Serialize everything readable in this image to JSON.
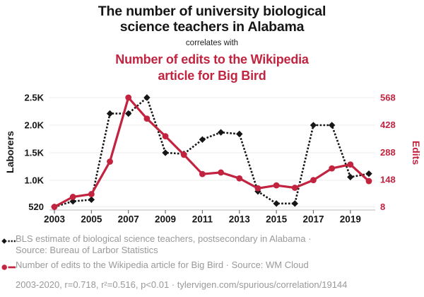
{
  "header": {
    "title_lines": [
      "The number of university biological",
      "science teachers in Alabama"
    ],
    "connector": "correlates with",
    "subtitle_lines": [
      "Number of edits to the Wikipedia",
      "article for Big Bird"
    ]
  },
  "colors": {
    "series_teachers": "#161616",
    "series_edits": "#c22440",
    "legend_text": "#999999",
    "grid": "#ececec",
    "axis_line": "#c6c6c6",
    "tick_mark": "#6e6e6e"
  },
  "chart_data": {
    "type": "line",
    "x": [
      2003,
      2004,
      2005,
      2006,
      2007,
      2008,
      2009,
      2010,
      2011,
      2012,
      2013,
      2014,
      2015,
      2016,
      2017,
      2018,
      2019,
      2020
    ],
    "series": [
      {
        "name": "BLS estimate of biological science teachers, postsecondary in Alabama",
        "axis": "left",
        "style": "dashed",
        "marker": "diamond",
        "color": "#161616",
        "values": [
          520,
          620,
          650,
          2210,
          2210,
          2500,
          1500,
          1480,
          1740,
          1870,
          1840,
          800,
          580,
          580,
          2000,
          2000,
          1060,
          1120
        ]
      },
      {
        "name": "Number of edits to the Wikipedia article for Big Bird",
        "axis": "right",
        "style": "solid",
        "marker": "circle",
        "color": "#c22440",
        "values": [
          8,
          59,
          73,
          240,
          568,
          460,
          370,
          275,
          176,
          184,
          154,
          103,
          118,
          106,
          145,
          205,
          225,
          140
        ]
      }
    ],
    "left_axis": {
      "label": "Laborers",
      "range": [
        520,
        2500
      ],
      "ticks": [
        520,
        1000,
        1500,
        2000,
        2500
      ],
      "tick_labels": [
        "520",
        "1.0K",
        "1.5K",
        "2.0K",
        "2.5K"
      ]
    },
    "right_axis": {
      "label": "Edits",
      "range": [
        8,
        568
      ],
      "ticks": [
        8,
        148,
        288,
        428,
        568
      ],
      "tick_labels": [
        "8",
        "148",
        "288",
        "428",
        "568"
      ]
    },
    "x_axis": {
      "ticks": [
        2003,
        2005,
        2007,
        2009,
        2011,
        2013,
        2015,
        2017,
        2019
      ],
      "tick_labels": [
        "2003",
        "2005",
        "2007",
        "2009",
        "2011",
        "2013",
        "2015",
        "2017",
        "2019"
      ]
    },
    "grid": true,
    "legend_position": "bottom"
  },
  "legend": {
    "rows": [
      {
        "icon": "diamond-dashed-line",
        "lines": [
          "BLS estimate of biological science teachers, postsecondary in Alabama ·",
          "Source: Bureau of Larbor Statistics"
        ]
      },
      {
        "icon": "circle-solid-line",
        "lines": [
          "Number of edits to the Wikipedia article for Big Bird · Source: WM Cloud"
        ]
      },
      {
        "icon": "none",
        "lines": [
          "2003-2020, r=0.718, r²=0.516, p<0.01 · tylervigen.com/spurious/correlation/19144"
        ]
      }
    ]
  }
}
